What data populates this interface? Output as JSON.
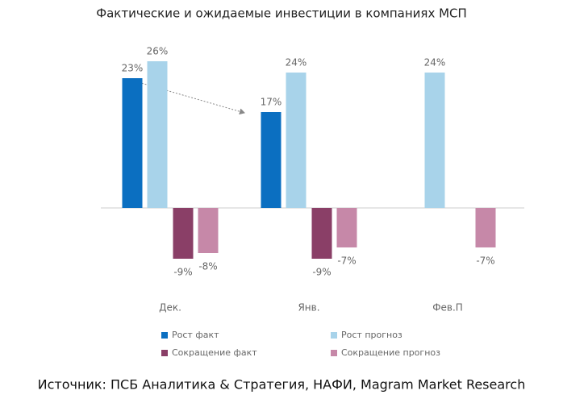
{
  "chart_data": {
    "type": "bar",
    "title": "Фактические и ожидаемые инвестиции в компаниях МСП",
    "source": "Источник: ПСБ Аналитика & Стратегия, НАФИ, Magram Market Research",
    "categories": [
      "Дек.",
      "Янв.",
      "Фев.П"
    ],
    "series": [
      {
        "name": "Рост факт",
        "color": "#0b6fc1",
        "values": [
          23,
          17,
          null
        ],
        "value_labels": [
          "23%",
          "17%",
          null
        ]
      },
      {
        "name": "Рост прогноз",
        "color": "#a8d3ea",
        "values": [
          26,
          24,
          24
        ],
        "value_labels": [
          "26%",
          "24%",
          "24%"
        ]
      },
      {
        "name": "Сокращение факт",
        "color": "#8a3f67",
        "values": [
          -9,
          -9,
          null
        ],
        "value_labels": [
          "-9%",
          "-9%",
          null
        ]
      },
      {
        "name": "Сокращение прогноз",
        "color": "#c688a8",
        "values": [
          -8,
          -7,
          -7
        ],
        "value_labels": [
          "-8%",
          "-7%",
          "-7%"
        ]
      }
    ]
  }
}
